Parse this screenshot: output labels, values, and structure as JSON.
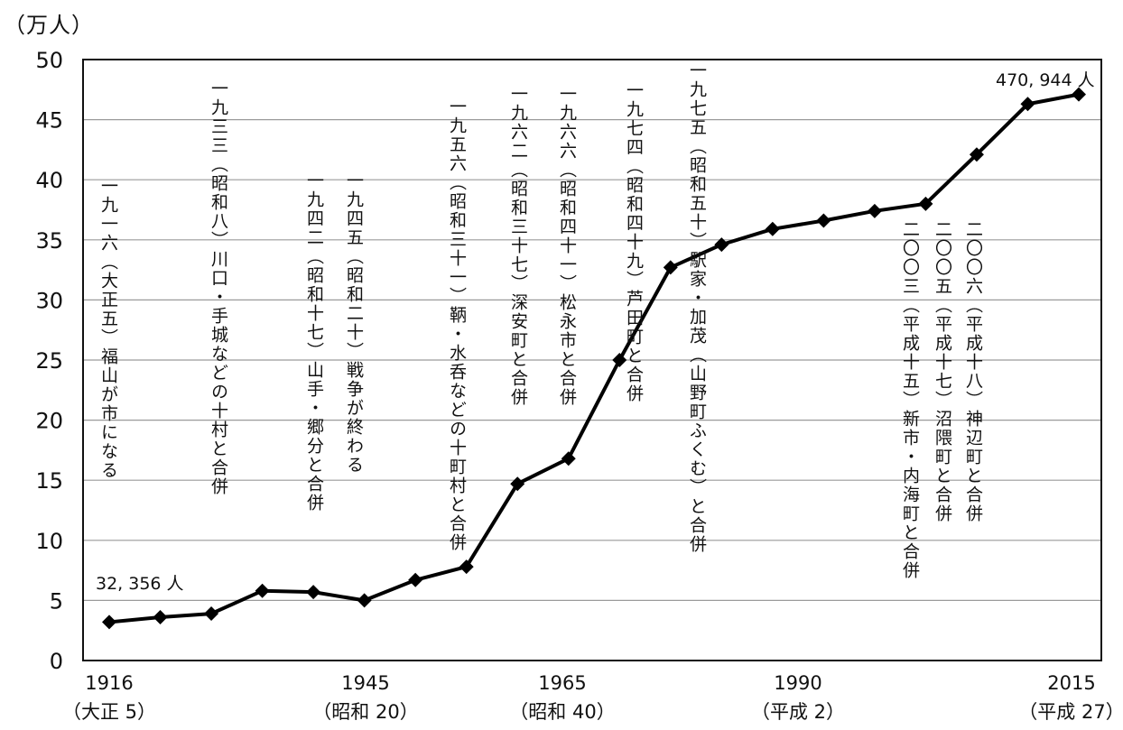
{
  "unit_label": "（万人）",
  "chart_data": {
    "type": "line",
    "title": "",
    "xlabel": "",
    "ylabel": "（万人）",
    "ylim": [
      0,
      50
    ],
    "yticks": [
      "0",
      "5",
      "10",
      "15",
      "20",
      "25",
      "30",
      "35",
      "40",
      "45",
      "50"
    ],
    "grid": true,
    "x_tick_labels": [
      {
        "year": "1916",
        "era": "（大正 5）"
      },
      {
        "year": "1945",
        "era": "（昭和 20）"
      },
      {
        "year": "1965",
        "era": "（昭和 40）"
      },
      {
        "year": "1990",
        "era": "（平成 2）"
      },
      {
        "year": "2015",
        "era": "（平成 27）"
      }
    ],
    "series": [
      {
        "values": [
          3.2,
          3.6,
          3.9,
          5.8,
          5.7,
          5.0,
          6.7,
          7.8,
          14.7,
          16.8,
          25.0,
          32.7,
          34.6,
          35.9,
          36.6,
          37.4,
          38.0,
          42.1,
          46.3,
          47.1
        ]
      }
    ],
    "value_labels": {
      "first": "32, 356 人",
      "last": "470, 944 人"
    },
    "annotations": [
      "一九一六（大正五）福山が市になる",
      "一九三三（昭和八）川口・手城などの十村と合併",
      "一九四二（昭和十七）山手・郷分と合併",
      "一九四五（昭和二十）戦争が終わる",
      "一九五六（昭和三十一）鞆・水呑などの十町村と合併",
      "一九六二（昭和三十七）深安町と合併",
      "一九六六（昭和四十一）松永市と合併",
      "一九七四（昭和四十九）芦田町と合併",
      "一九七五（昭和五十）駅家・加茂（山野町ふくむ）と合併",
      "二〇〇三（平成十五）新市・内海町と合併",
      "二〇〇五（平成十七）沼隈町と合併",
      "二〇〇六（平成十八）神辺町と合併"
    ]
  }
}
